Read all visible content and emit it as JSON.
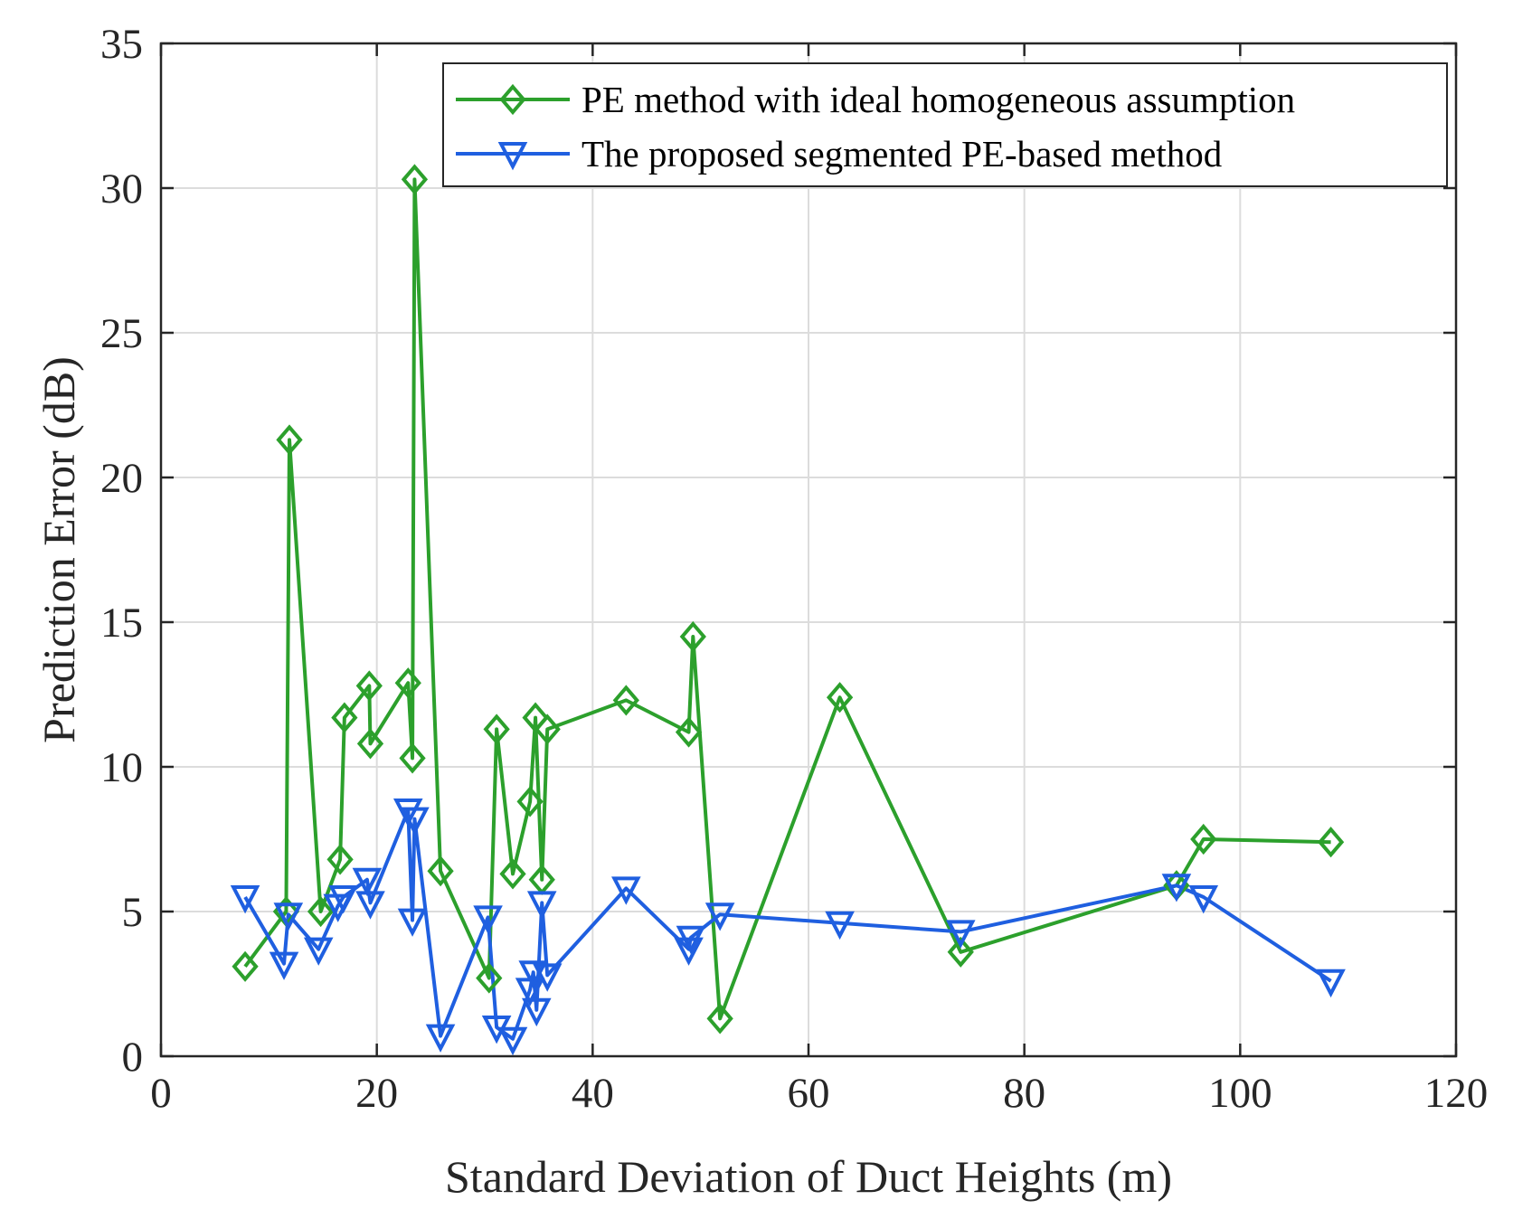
{
  "chart_data": {
    "type": "line",
    "title": "",
    "xlabel": "Standard Deviation of Duct Heights (m)",
    "ylabel": "Prediction Error (dB)",
    "xlim": [
      0,
      120
    ],
    "ylim": [
      0,
      35
    ],
    "xticks": [
      0,
      20,
      40,
      60,
      80,
      100,
      120
    ],
    "yticks": [
      0,
      5,
      10,
      15,
      20,
      25,
      30,
      35
    ],
    "grid": true,
    "legend_position": "top-right",
    "series": [
      {
        "name": "PE method with ideal homogeneous assumption",
        "marker": "diamond",
        "color": "#2ca02c",
        "points": [
          [
            7.8,
            3.1
          ],
          [
            11.6,
            5.0
          ],
          [
            11.9,
            21.3
          ],
          [
            14.8,
            5.0
          ],
          [
            16.6,
            6.8
          ],
          [
            17.0,
            11.7
          ],
          [
            19.3,
            12.8
          ],
          [
            19.4,
            10.8
          ],
          [
            22.9,
            12.9
          ],
          [
            23.3,
            10.3
          ],
          [
            23.5,
            30.3
          ],
          [
            25.9,
            6.4
          ],
          [
            30.4,
            2.7
          ],
          [
            31.1,
            11.3
          ],
          [
            32.6,
            6.3
          ],
          [
            34.2,
            8.8
          ],
          [
            34.7,
            11.7
          ],
          [
            35.3,
            6.1
          ],
          [
            35.8,
            11.3
          ],
          [
            43.1,
            12.3
          ],
          [
            48.9,
            11.2
          ],
          [
            49.3,
            14.5
          ],
          [
            51.8,
            1.3
          ],
          [
            62.9,
            12.4
          ],
          [
            74.1,
            3.6
          ],
          [
            94.1,
            5.9
          ],
          [
            96.6,
            7.5
          ],
          [
            108.4,
            7.4
          ]
        ]
      },
      {
        "name": "The proposed segmented PE-based method",
        "marker": "triangle-down",
        "color": "#1f5fe0",
        "points": [
          [
            7.8,
            5.5
          ],
          [
            11.4,
            3.2
          ],
          [
            11.8,
            4.9
          ],
          [
            14.6,
            3.7
          ],
          [
            16.4,
            5.2
          ],
          [
            16.9,
            5.5
          ],
          [
            19.1,
            6.1
          ],
          [
            19.4,
            5.3
          ],
          [
            22.9,
            8.5
          ],
          [
            23.3,
            4.7
          ],
          [
            23.5,
            8.2
          ],
          [
            25.9,
            0.7
          ],
          [
            30.3,
            4.8
          ],
          [
            31.1,
            1.0
          ],
          [
            32.6,
            0.6
          ],
          [
            34.2,
            2.3
          ],
          [
            34.5,
            2.9
          ],
          [
            34.8,
            1.6
          ],
          [
            35.3,
            5.3
          ],
          [
            35.8,
            2.8
          ],
          [
            43.1,
            5.8
          ],
          [
            48.9,
            3.7
          ],
          [
            49.1,
            4.1
          ],
          [
            51.8,
            4.9
          ],
          [
            62.9,
            4.6
          ],
          [
            74.1,
            4.3
          ],
          [
            94.1,
            5.9
          ],
          [
            96.6,
            5.5
          ],
          [
            108.4,
            2.6
          ]
        ]
      }
    ]
  }
}
